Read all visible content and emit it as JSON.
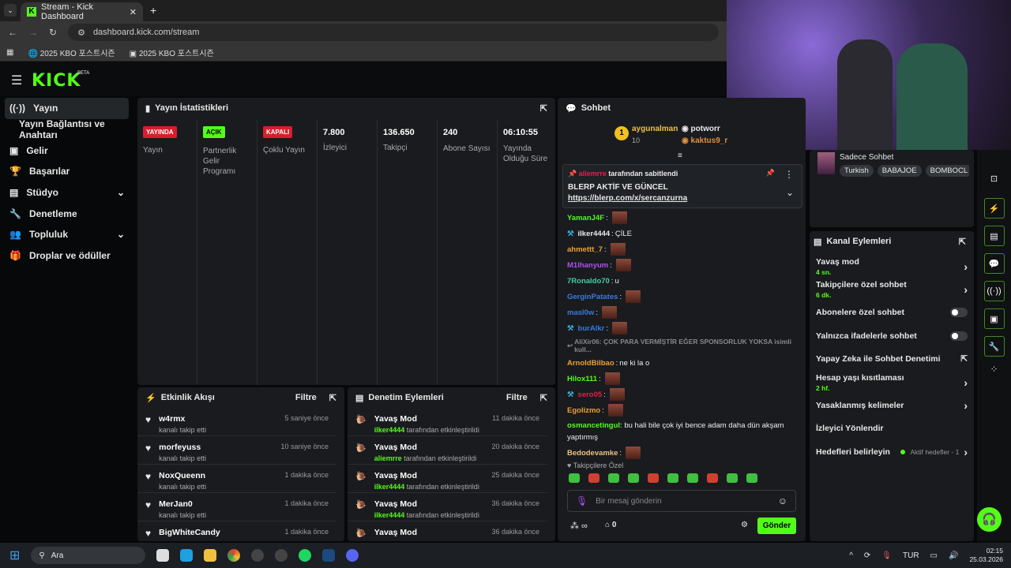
{
  "browser": {
    "tab_title": "Stream - Kick Dashboard",
    "url": "dashboard.kick.com/stream",
    "bookmarks": [
      "2025 KBO 포스트시즌",
      "2025 KBO 포스트시즌"
    ]
  },
  "brand": {
    "logo": "KICK",
    "beta": "BETA",
    "accent": "#53fc18"
  },
  "sidebar": {
    "items": [
      {
        "label": "Yayın",
        "icon": "broadcast-icon"
      },
      {
        "label": "Yayın Bağlantısı ve Anahtarı"
      },
      {
        "label": "Gelir",
        "icon": "money-icon"
      },
      {
        "label": "Başarılar",
        "icon": "trophy-icon"
      },
      {
        "label": "Stüdyo",
        "icon": "studio-icon",
        "chevron": true
      },
      {
        "label": "Denetleme",
        "icon": "wrench-icon"
      },
      {
        "label": "Topluluk",
        "icon": "community-icon",
        "chevron": true
      },
      {
        "label": "Droplar ve ödüller",
        "icon": "gift-icon"
      }
    ]
  },
  "stats": {
    "title": "Yayın İstatistikleri",
    "items": [
      {
        "badge": "YAYINDA",
        "badge_color": "#d81e2c",
        "label": "Yayın"
      },
      {
        "badge": "AÇIK",
        "badge_color": "#53fc18",
        "label": "Partnerlik Gelir Programı"
      },
      {
        "badge": "KAPALI",
        "badge_color": "#d81e2c",
        "label": "Çoklu Yayın"
      },
      {
        "value": "7.800",
        "label": "İzleyici"
      },
      {
        "value": "136.650",
        "label": "Takipçi"
      },
      {
        "value": "240",
        "label": "Abone Sayısı"
      },
      {
        "value": "06:10:55",
        "label": "Yayında Olduğu Süre"
      }
    ]
  },
  "activity": {
    "title": "Etkinlik Akışı",
    "filter": "Filtre",
    "items": [
      {
        "name": "w4rmx",
        "sub": "kanalı takip etti",
        "time": "5 saniye önce"
      },
      {
        "name": "morfeyuss",
        "sub": "kanalı takip etti",
        "time": "10 saniye önce"
      },
      {
        "name": "NoxQueenn",
        "sub": "kanalı takip etti",
        "time": "1 dakika önce"
      },
      {
        "name": "MerJan0",
        "sub": "kanalı takip etti",
        "time": "1 dakika önce"
      },
      {
        "name": "BigWhiteCandy",
        "sub": "",
        "time": "1 dakika önce"
      }
    ]
  },
  "moderation": {
    "title": "Denetim Eylemleri",
    "filter": "Filtre",
    "items": [
      {
        "name": "Yavaş Mod",
        "user": "ilker4444",
        "sub": "tarafından etkinleştirildi",
        "time": "11 dakika önce"
      },
      {
        "name": "Yavaş Mod",
        "user": "aliemrre",
        "sub": "tarafından etkinleştirildi",
        "time": "20 dakika önce"
      },
      {
        "name": "Yavaş Mod",
        "user": "ilker4444",
        "sub": "tarafından etkinleştirildi",
        "time": "25 dakika önce"
      },
      {
        "name": "Yavaş Mod",
        "user": "ilker4444",
        "sub": "tarafından etkinleştirildi",
        "time": "36 dakika önce"
      },
      {
        "name": "Yavaş Mod",
        "user": "",
        "sub": "",
        "time": "36 dakika önce"
      }
    ]
  },
  "chat": {
    "title": "Sohbet",
    "leaderboard": {
      "first": "aygunalman",
      "first_count": "10",
      "second": "potworr",
      "third": "kaktus9_r",
      "rank1": "1",
      "rank2": "2",
      "rank3": "3"
    },
    "pinned": {
      "by_user": "aliemrre",
      "by_text": "tarafından sabitlendi",
      "title": "BLERP AKTİF VE GÜNCEL",
      "link": "https://blerp.com/x/sercanzurna"
    },
    "messages": [
      {
        "user": "YamanJ4F",
        "color": "#53fc18",
        "emote": true
      },
      {
        "user": "ilker4444",
        "color": "#e8e8e8",
        "text": "ÇİLE",
        "badge": true
      },
      {
        "user": "ahmettt_7",
        "color": "#f0a030",
        "emote": true
      },
      {
        "user": "M1lhanyum",
        "color": "#b050f0",
        "emote": true
      },
      {
        "user": "7Ronaldo70",
        "color": "#40d0a0",
        "text": "u"
      },
      {
        "user": "GerginPatates",
        "color": "#3a7ae0",
        "emote": true
      },
      {
        "user": "masl0w",
        "color": "#3a7ae0",
        "emote": true
      },
      {
        "user": "burAlkr",
        "color": "#3a7ae0",
        "emote": true,
        "badge": true
      },
      {
        "reply": "AliXir06: ÇOK PARA VERMİŞTİR EĞER SPONSORLUK YOKSA isimli kull..."
      },
      {
        "user": "ArnoldBilbao",
        "color": "#f0a030",
        "text": "ne ki la o"
      },
      {
        "user": "Hilox111",
        "color": "#53fc18",
        "emote": true
      },
      {
        "user": "sero05",
        "color": "#e0204a",
        "emote": true,
        "badge": true
      },
      {
        "user": "Egolizmo",
        "color": "#f0a030",
        "emote": true
      },
      {
        "user": "osmancetingul",
        "color": "#53fc18",
        "text": "bu hali bile çok iyi bence adam daha dün akşam yaptırmış"
      },
      {
        "user": "Bedodevamke",
        "color": "#f0c080",
        "emote": true
      }
    ],
    "followers_only": "Takipçilere Özel",
    "placeholder": "Bir mesaj gönderin",
    "points": "0",
    "send": "Gönder"
  },
  "stream_info": {
    "category": "Sadece Sohbet",
    "tags": [
      "Turkish",
      "BABAJOE",
      "BOMBOCL"
    ]
  },
  "channel_actions": {
    "title": "Kanal Eylemleri",
    "items": [
      {
        "label": "Yavaş mod",
        "sub": "4 sn.",
        "control": "chevron"
      },
      {
        "label": "Takipçilere özel sohbet",
        "sub": "6 dk.",
        "control": "chevron"
      },
      {
        "label": "Abonelere özel sohbet",
        "control": "toggle",
        "on": false
      },
      {
        "label": "Yalnızca ifadelerle sohbet",
        "control": "toggle",
        "on": false
      },
      {
        "label": "Yapay Zeka ile Sohbet Denetimi",
        "control": "external"
      },
      {
        "label": "Hesap yaşı kısıtlaması",
        "sub": "2 hf.",
        "control": "chevron"
      },
      {
        "label": "Yasaklanmış kelimeler",
        "control": "chevron"
      },
      {
        "label": "İzleyici Yönlendir",
        "control": "none"
      },
      {
        "label": "Hedefleri belirleyin",
        "status": "Aktif hedefler - 1",
        "control": "chevron"
      }
    ]
  },
  "taskbar": {
    "search": "Ara",
    "lang": "TUR",
    "time": "02:15",
    "date": "25.03.2026"
  }
}
